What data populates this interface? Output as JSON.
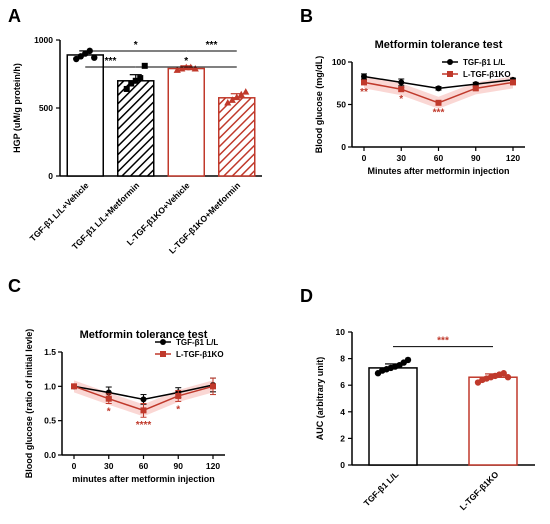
{
  "colors": {
    "ctrl": "#000000",
    "ko": "#c0392b",
    "ko_light": "#f5b7b1"
  },
  "panels": {
    "a": "A",
    "b": "B",
    "c": "C",
    "d": "D"
  },
  "chart_data": [
    {
      "panel": "A",
      "type": "bar",
      "ylabel": "HGP (uM/g protein/h)",
      "ylim": [
        0,
        1000
      ],
      "yticks": [
        "0",
        "500",
        "1000"
      ],
      "categories": [
        "TGF-β1 L/L+Vehicle",
        "TGF-β1 L/L+Metformin",
        "L-TGF-β1KO+Vehicle",
        "L-TGF-β1KO+Metformin"
      ],
      "values": [
        890,
        700,
        790,
        575
      ],
      "errors": [
        30,
        45,
        20,
        30
      ],
      "points": [
        [
          860,
          880,
          900,
          920,
          870
        ],
        [
          640,
          680,
          700,
          720,
          810
        ],
        [
          780,
          790,
          800,
          800,
          790
        ],
        [
          540,
          560,
          580,
          600,
          620
        ]
      ],
      "styles": [
        "white",
        "black-hatch",
        "white-red",
        "red-hatch"
      ],
      "comparisons": [
        {
          "from": 0,
          "to": 2,
          "label": "*"
        },
        {
          "from": 2,
          "to": 3,
          "label": "***"
        },
        {
          "from": 0,
          "to": 1,
          "label": "***"
        },
        {
          "from": 1,
          "to": 3,
          "label": "*"
        }
      ]
    },
    {
      "panel": "B",
      "type": "line",
      "title": "Metformin tolerance test",
      "xlabel": "Minutes after metformin injection",
      "ylabel": "Blood glucose (mg/dL)",
      "x": [
        0,
        30,
        60,
        90,
        120
      ],
      "xticks": [
        "0",
        "30",
        "60",
        "90",
        "120"
      ],
      "ylim": [
        0,
        100
      ],
      "yticks": [
        "0",
        "50",
        "100"
      ],
      "series": [
        {
          "name": "TGF-β1 L/L",
          "values": [
            83,
            76,
            69,
            74,
            79
          ],
          "errors": [
            3,
            4,
            2,
            2,
            2
          ]
        },
        {
          "name": "L-TGF-β1KO",
          "values": [
            76,
            68,
            52,
            69,
            76
          ],
          "errors": [
            2,
            2,
            2,
            2,
            2
          ]
        }
      ],
      "annotations": [
        {
          "x": 0,
          "label": "**"
        },
        {
          "x": 30,
          "label": "*"
        },
        {
          "x": 60,
          "label": "***"
        }
      ]
    },
    {
      "panel": "C",
      "type": "line",
      "title": "Metformin tolerance test",
      "xlabel": "minutes after metformin injection",
      "ylabel": "Blood glucose (ratio of initial levle)",
      "x": [
        0,
        30,
        60,
        90,
        120
      ],
      "xticks": [
        "0",
        "30",
        "60",
        "90",
        "120"
      ],
      "ylim": [
        0,
        1.5
      ],
      "yticks": [
        "0.0",
        "0.5",
        "1.0",
        "1.5"
      ],
      "series": [
        {
          "name": "TGF-β1 L/L",
          "values": [
            1.0,
            0.91,
            0.81,
            0.91,
            1.02
          ],
          "errors": [
            0.01,
            0.08,
            0.07,
            0.07,
            0.1
          ]
        },
        {
          "name": "L-TGF-β1KO",
          "values": [
            1.0,
            0.82,
            0.65,
            0.86,
            1.0
          ],
          "errors": [
            0.01,
            0.07,
            0.1,
            0.08,
            0.12
          ]
        }
      ],
      "annotations": [
        {
          "x": 30,
          "label": "*"
        },
        {
          "x": 60,
          "label": "****"
        },
        {
          "x": 90,
          "label": "*"
        }
      ]
    },
    {
      "panel": "D",
      "type": "bar",
      "ylabel": "AUC (arbitrary unit)",
      "ylim": [
        0,
        10
      ],
      "yticks": [
        "0",
        "2",
        "4",
        "6",
        "8",
        "10"
      ],
      "categories": [
        "TGF-β1 L/L",
        "L-TGF-β1KO"
      ],
      "values": [
        7.3,
        6.6
      ],
      "errors": [
        0.3,
        0.25
      ],
      "points": [
        [
          6.9,
          7.1,
          7.2,
          7.3,
          7.4,
          7.5,
          7.7,
          7.9
        ],
        [
          6.2,
          6.4,
          6.5,
          6.6,
          6.7,
          6.8,
          6.9,
          6.6
        ]
      ],
      "comparison": {
        "from": 0,
        "to": 1,
        "label": "***"
      }
    }
  ]
}
